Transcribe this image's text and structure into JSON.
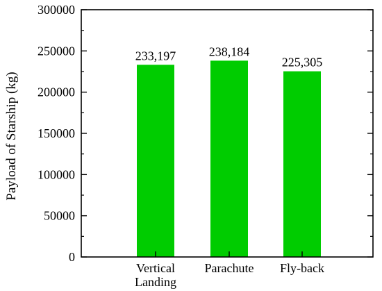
{
  "chart_data": {
    "type": "bar",
    "categories": [
      [
        "Vertical",
        "Landing"
      ],
      [
        "Parachute"
      ],
      [
        "Fly-back"
      ]
    ],
    "values": [
      233197,
      238184,
      225305
    ],
    "data_labels": [
      "233,197",
      "238,184",
      "225,305"
    ],
    "title": "",
    "xlabel": "",
    "ylabel": "Payload of Starship (kg)",
    "ylim": [
      0,
      300000
    ],
    "yticks": [
      0,
      50000,
      100000,
      150000,
      200000,
      250000,
      300000
    ],
    "ytick_labels": [
      "0",
      "50000",
      "100000",
      "150000",
      "200000",
      "250000",
      "300000"
    ],
    "grid": false,
    "bar_color": "#00cc00"
  }
}
